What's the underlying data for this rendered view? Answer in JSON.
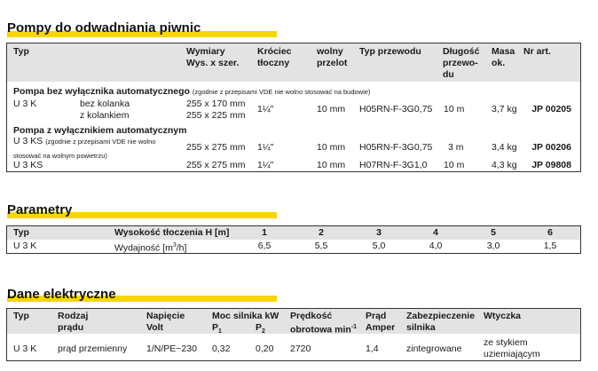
{
  "section1": {
    "title": "Pompy do odwadniania piwnic",
    "headers": {
      "typ": "Typ",
      "wymiary": [
        "Wymiary",
        "Wys. x szer."
      ],
      "krociec": [
        "Króciec",
        "tłoczny"
      ],
      "przelot": [
        "wolny",
        "przelot"
      ],
      "przewod": "Typ przewodu",
      "dlugosc": [
        "Długość",
        "przewo-",
        "du"
      ],
      "masa": [
        "Masa",
        "ok."
      ],
      "nr": "Nr art."
    },
    "group1": {
      "title": "Pompa bez wyłącznika automatycznego",
      "note": "(zgodnie z przepisami VDE nie wolno stosować na budowie)",
      "row": {
        "typ": "U 3 K",
        "variants": [
          "bez kolanka",
          "z kolankiem"
        ],
        "wymiary": [
          "255 x 170 mm",
          "255 x 225 mm"
        ],
        "krociec": "1¼\"",
        "przelot": "10 mm",
        "przewod": "H05RN-F-3G0,75",
        "dlugosc": "10 m",
        "masa": "3,7 kg",
        "nr": "JP 00205"
      }
    },
    "group2": {
      "title": "Pompa z wyłącznikiem automatycznym",
      "rows": [
        {
          "typ": "U 3 KS",
          "note": [
            "(zgodnie z przepisami VDE nie wolno",
            "stosować na wolnym powietrzu)"
          ],
          "wymiary": "255 x 275 mm",
          "krociec": "1¼\"",
          "przelot": "10 mm",
          "przewod": "H05RN-F-3G0,75",
          "dlugosc": "3 m",
          "masa": "3,4 kg",
          "nr": "JP 00206"
        },
        {
          "typ": "U 3 KS",
          "wymiary": "255 x 275 mm",
          "krociec": "1¼\"",
          "przelot": "10 mm",
          "przewod": "H07RN-F-3G1,0",
          "dlugosc": "10 m",
          "masa": "4,3 kg",
          "nr": "JP 09808"
        }
      ]
    }
  },
  "section2": {
    "title": "Parametry",
    "header": {
      "typ": "Typ",
      "label": "Wysokość tłoczenia H [m]",
      "values": [
        "1",
        "2",
        "3",
        "4",
        "5",
        "6"
      ]
    },
    "row": {
      "typ": "U 3 K",
      "label": "Wydajność [m",
      "sup": "3",
      "label_end": "/h]",
      "values": [
        "6,5",
        "5,5",
        "5,0",
        "4,0",
        "3,0",
        "1,5"
      ]
    }
  },
  "section3": {
    "title": "Dane elektryczne",
    "headers": {
      "typ": "Typ",
      "rodzaj": [
        "Rodzaj",
        "prądu"
      ],
      "napiecie": [
        "Napięcie",
        "Volt"
      ],
      "moc": "Moc silnika kW",
      "p1": "P",
      "p1sub": "1",
      "p2": "P",
      "p2sub": "2",
      "predkosc": [
        "Prędkość",
        "obrotowa min"
      ],
      "predkosc_sup": "-1",
      "prad": [
        "Prąd",
        "Amper"
      ],
      "zabezp": [
        "Zabezpieczenie",
        "silnika"
      ],
      "wtyczka": "Wtyczka"
    },
    "row": {
      "typ": "U 3 K",
      "rodzaj": "prąd przemienny",
      "napiecie": "1/N/PE~230",
      "p1": "0,32",
      "p2": "0,20",
      "predkosc": "2720",
      "prad": "1,4",
      "zabezp": "zintegrowane",
      "wtyczka": [
        "ze stykiem",
        "uziemiającym"
      ]
    }
  }
}
